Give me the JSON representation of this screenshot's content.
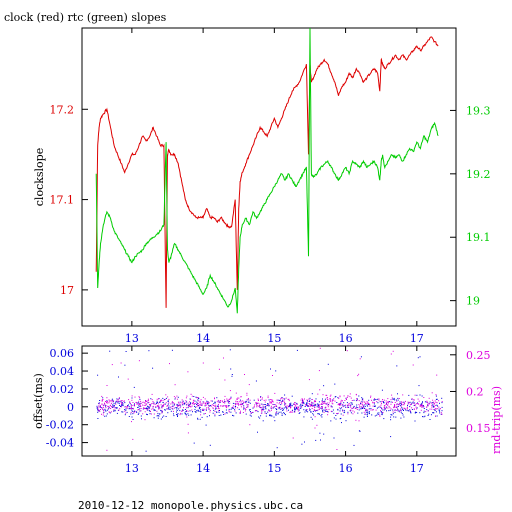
{
  "colors": {
    "clock": "#dd0000",
    "rtc": "#00cc00",
    "offset": "#0000dd",
    "rnd_trip": "#dd00dd",
    "axis": "#000000"
  },
  "chart_data": [
    {
      "type": "line",
      "title": "clock (red) rtc (green) slopes",
      "xlabel": "",
      "ylabel": "clockslope",
      "y2label": "",
      "xlim": [
        12.3,
        17.55
      ],
      "ylim": [
        16.96,
        17.29
      ],
      "y2lim": [
        18.96,
        19.43
      ],
      "x_ticks": [
        "13",
        "14",
        "15",
        "16",
        "17"
      ],
      "y_ticks": [
        "17",
        "17.1",
        "17.2"
      ],
      "y2_ticks": [
        "19",
        "19.1",
        "19.2",
        "19.3"
      ],
      "series": [
        {
          "axis": "left",
          "x": [
            12.5,
            12.52,
            12.54,
            12.56,
            12.6,
            12.65,
            12.7,
            12.75,
            12.8,
            12.85,
            12.9,
            12.95,
            13.0,
            13.05,
            13.1,
            13.15,
            13.2,
            13.25,
            13.3,
            13.35,
            13.4,
            13.45,
            13.48,
            13.5,
            13.52,
            13.55,
            13.6,
            13.65,
            13.7,
            13.75,
            13.8,
            13.85,
            13.9,
            13.95,
            14.0,
            14.05,
            14.1,
            14.15,
            14.2,
            14.25,
            14.3,
            14.35,
            14.4,
            14.45,
            14.48,
            14.5,
            14.52,
            14.55,
            14.6,
            14.65,
            14.7,
            14.75,
            14.8,
            14.85,
            14.9,
            14.95,
            15.0,
            15.05,
            15.1,
            15.15,
            15.2,
            15.25,
            15.3,
            15.35,
            15.4,
            15.45,
            15.48,
            15.5,
            15.52,
            15.55,
            15.6,
            15.65,
            15.7,
            15.75,
            15.8,
            15.85,
            15.9,
            15.95,
            16.0,
            16.05,
            16.1,
            16.15,
            16.2,
            16.25,
            16.3,
            16.35,
            16.4,
            16.45,
            16.48,
            16.5,
            16.52,
            16.55,
            16.6,
            16.65,
            16.7,
            16.75,
            16.8,
            16.85,
            16.9,
            16.95,
            17.0,
            17.05,
            17.1,
            17.15,
            17.2,
            17.25,
            17.3
          ],
          "y": [
            17.02,
            17.16,
            17.18,
            17.19,
            17.195,
            17.2,
            17.18,
            17.16,
            17.15,
            17.14,
            17.13,
            17.14,
            17.15,
            17.15,
            17.16,
            17.17,
            17.165,
            17.17,
            17.18,
            17.17,
            17.16,
            17.16,
            16.98,
            17.15,
            17.155,
            17.15,
            17.15,
            17.14,
            17.12,
            17.1,
            17.09,
            17.085,
            17.08,
            17.08,
            17.08,
            17.09,
            17.08,
            17.08,
            17.075,
            17.08,
            17.075,
            17.07,
            17.07,
            17.1,
            17.0,
            17.09,
            17.12,
            17.13,
            17.14,
            17.15,
            17.16,
            17.17,
            17.18,
            17.175,
            17.17,
            17.18,
            17.19,
            17.18,
            17.19,
            17.2,
            17.21,
            17.22,
            17.225,
            17.23,
            17.24,
            17.25,
            17.15,
            17.25,
            17.23,
            17.235,
            17.245,
            17.25,
            17.255,
            17.25,
            17.24,
            17.23,
            17.215,
            17.225,
            17.23,
            17.24,
            17.235,
            17.245,
            17.24,
            17.23,
            17.235,
            17.24,
            17.245,
            17.24,
            17.22,
            17.255,
            17.25,
            17.245,
            17.25,
            17.255,
            17.26,
            17.255,
            17.26,
            17.255,
            17.26,
            17.265,
            17.27,
            17.265,
            17.27,
            17.275,
            17.28,
            17.275,
            17.27
          ]
        },
        {
          "axis": "right",
          "x": [
            12.5,
            12.52,
            12.54,
            12.56,
            12.6,
            12.65,
            12.7,
            12.75,
            12.8,
            12.85,
            12.9,
            12.95,
            13.0,
            13.05,
            13.1,
            13.15,
            13.2,
            13.25,
            13.3,
            13.35,
            13.4,
            13.45,
            13.48,
            13.5,
            13.52,
            13.55,
            13.6,
            13.65,
            13.7,
            13.75,
            13.8,
            13.85,
            13.9,
            13.95,
            14.0,
            14.05,
            14.1,
            14.15,
            14.2,
            14.25,
            14.3,
            14.35,
            14.4,
            14.45,
            14.48,
            14.5,
            14.52,
            14.55,
            14.6,
            14.65,
            14.7,
            14.75,
            14.8,
            14.85,
            14.9,
            14.95,
            15.0,
            15.05,
            15.1,
            15.15,
            15.2,
            15.25,
            15.3,
            15.35,
            15.4,
            15.45,
            15.48,
            15.5,
            15.52,
            15.55,
            15.6,
            15.65,
            15.7,
            15.75,
            15.8,
            15.85,
            15.9,
            15.95,
            16.0,
            16.05,
            16.1,
            16.15,
            16.2,
            16.25,
            16.3,
            16.35,
            16.4,
            16.45,
            16.48,
            16.5,
            16.52,
            16.55,
            16.6,
            16.65,
            16.7,
            16.75,
            16.8,
            16.85,
            16.9,
            16.95,
            17.0,
            17.05,
            17.1,
            17.15,
            17.2,
            17.25,
            17.3
          ],
          "y": [
            19.2,
            19.02,
            19.06,
            19.09,
            19.12,
            19.14,
            19.13,
            19.11,
            19.1,
            19.09,
            19.08,
            19.07,
            19.06,
            19.07,
            19.075,
            19.08,
            19.09,
            19.095,
            19.1,
            19.105,
            19.11,
            19.12,
            19.25,
            19.08,
            19.06,
            19.07,
            19.09,
            19.08,
            19.07,
            19.06,
            19.05,
            19.04,
            19.03,
            19.02,
            19.01,
            19.02,
            19.04,
            19.03,
            19.02,
            19.01,
            19.0,
            18.99,
            19.0,
            19.02,
            18.98,
            19.05,
            19.1,
            19.12,
            19.13,
            19.12,
            19.14,
            19.13,
            19.14,
            19.15,
            19.16,
            19.17,
            19.18,
            19.19,
            19.2,
            19.19,
            19.2,
            19.19,
            19.18,
            19.19,
            19.2,
            19.21,
            19.07,
            19.43,
            19.2,
            19.195,
            19.2,
            19.21,
            19.215,
            19.22,
            19.21,
            19.2,
            19.19,
            19.2,
            19.21,
            19.2,
            19.22,
            19.215,
            19.21,
            19.22,
            19.21,
            19.215,
            19.22,
            19.21,
            19.19,
            19.22,
            19.23,
            19.21,
            19.22,
            19.23,
            19.225,
            19.23,
            19.22,
            19.23,
            19.24,
            19.235,
            19.25,
            19.24,
            19.26,
            19.25,
            19.27,
            19.28,
            19.26
          ]
        }
      ]
    },
    {
      "type": "scatter",
      "title": "",
      "xlabel": "",
      "ylabel": "offset(ms)",
      "y2label": "rnd-trip(ms)",
      "xlim": [
        12.3,
        17.55
      ],
      "ylim": [
        -0.055,
        0.068
      ],
      "y2lim": [
        0.112,
        0.262
      ],
      "x_ticks": [
        "13",
        "14",
        "15",
        "16",
        "17"
      ],
      "y_ticks": [
        "-0.04",
        "-0.02",
        "0",
        "0.02",
        "0.04",
        "0.06"
      ],
      "y2_ticks": [
        "0.15",
        "0.2",
        "0.25"
      ],
      "series": [
        {
          "axis": "left",
          "x_range": [
            12.5,
            17.35
          ],
          "center": 0.0,
          "spread": 0.012,
          "outlier_range": [
            -0.05,
            0.065
          ]
        },
        {
          "axis": "right",
          "x_range": [
            12.5,
            17.35
          ],
          "center": 0.183,
          "spread": 0.012,
          "outlier_range": [
            0.12,
            0.26
          ]
        }
      ]
    }
  ],
  "footer": "2010-12-12  monopole.physics.ubc.ca"
}
